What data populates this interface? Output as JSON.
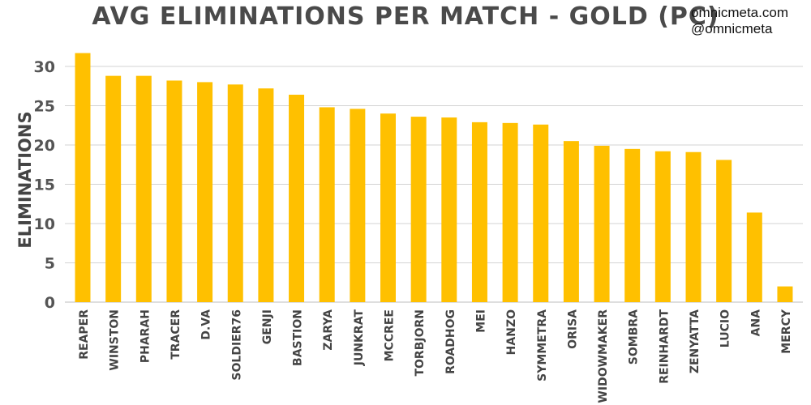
{
  "watermark": {
    "site": "omnicmeta.com",
    "handle": "@omnicmeta"
  },
  "colors": {
    "bar": "#ffc000",
    "title": "#4a4a4a",
    "grid": "#d3d3d3"
  },
  "chart_data": {
    "type": "bar",
    "title": "AVG ELIMINATIONS PER MATCH - GOLD (PC)",
    "xlabel": "",
    "ylabel": "ELIMINATIONS",
    "ylim": [
      0,
      33
    ],
    "yticks": [
      0,
      5,
      10,
      15,
      20,
      25,
      30
    ],
    "grid": true,
    "categories": [
      "REAPER",
      "WINSTON",
      "PHARAH",
      "TRACER",
      "D.VA",
      "SOLDIER76",
      "GENJI",
      "BASTION",
      "ZARYA",
      "JUNKRAT",
      "MCCREE",
      "TORBJORN",
      "ROADHOG",
      "MEI",
      "HANZO",
      "SYMMETRA",
      "ORISA",
      "WIDOWMAKER",
      "SOMBRA",
      "REINHARDT",
      "ZENYATTA",
      "LUCIO",
      "ANA",
      "MERCY"
    ],
    "values": [
      31.7,
      28.8,
      28.8,
      28.2,
      28.0,
      27.7,
      27.2,
      26.4,
      24.8,
      24.6,
      24.0,
      23.6,
      23.5,
      22.9,
      22.8,
      22.6,
      20.5,
      19.9,
      19.5,
      19.2,
      19.1,
      18.1,
      11.4,
      2.0
    ]
  }
}
